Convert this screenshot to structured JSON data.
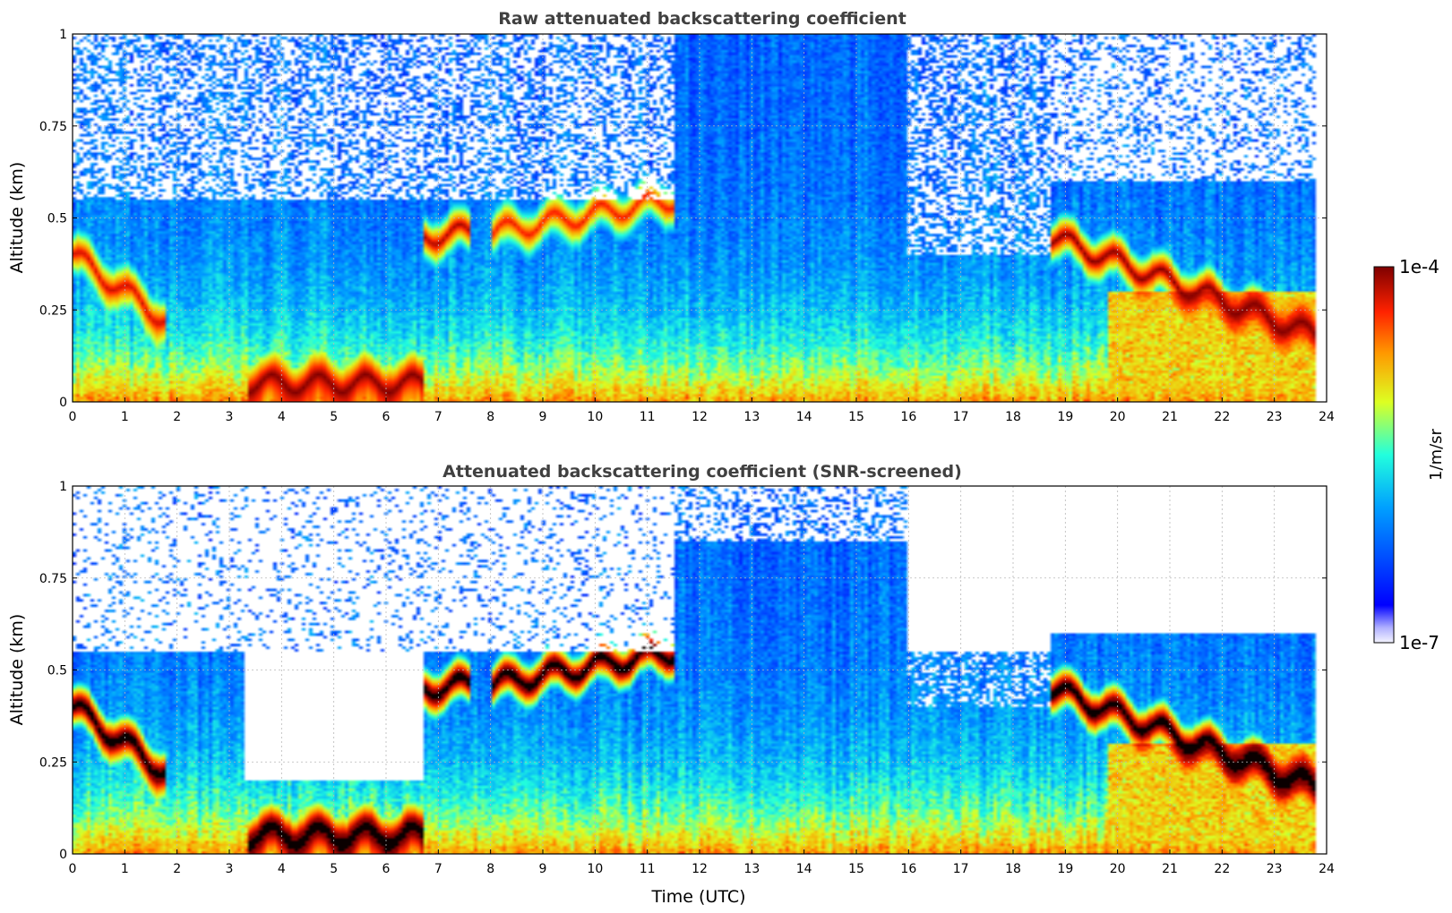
{
  "figure": {
    "xlabel": "Time (UTC)",
    "colorbar": {
      "label": "1/m/sr",
      "max_label": "1e-4",
      "min_label": "1e-7",
      "vmin_log10": -7,
      "vmax_log10": -4,
      "colormap": "jet"
    }
  },
  "chart_data": [
    {
      "type": "heatmap",
      "title": "Raw attenuated backscattering coefficient",
      "xlabel": "",
      "ylabel": "Altitude (km)",
      "xlim": [
        0,
        24
      ],
      "ylim": [
        0,
        1
      ],
      "xticks": [
        "0",
        "1",
        "2",
        "3",
        "4",
        "5",
        "6",
        "7",
        "8",
        "9",
        "10",
        "11",
        "12",
        "13",
        "14",
        "15",
        "16",
        "17",
        "18",
        "19",
        "20",
        "21",
        "22",
        "23",
        "24"
      ],
      "yticks": [
        "0",
        "0.25",
        "0.5",
        "0.75",
        "1"
      ],
      "grid": true,
      "data_end_hour": 23.8,
      "cloud_layers": [
        {
          "t0": 0.0,
          "t1": 1.8,
          "h_start": 0.4,
          "h_end": 0.22,
          "log10": -4.2
        },
        {
          "t0": 3.35,
          "t1": 6.7,
          "h_start": 0.05,
          "h_end": 0.05,
          "log10": -4.0
        },
        {
          "t0": 6.7,
          "t1": 7.6,
          "h_start": 0.45,
          "h_end": 0.46,
          "log10": -4.1
        },
        {
          "t0": 8.0,
          "t1": 11.5,
          "h_start": 0.46,
          "h_end": 0.55,
          "log10": -4.3
        },
        {
          "t0": 18.7,
          "t1": 23.8,
          "h_start": 0.45,
          "h_end": 0.18,
          "log10": -4.0
        }
      ],
      "screened": false
    },
    {
      "type": "heatmap",
      "title": "Attenuated backscattering coefficient (SNR-screened)",
      "xlabel": "Time (UTC)",
      "ylabel": "Altitude (km)",
      "xlim": [
        0,
        24
      ],
      "ylim": [
        0,
        1
      ],
      "xticks": [
        "0",
        "1",
        "2",
        "3",
        "4",
        "5",
        "6",
        "7",
        "8",
        "9",
        "10",
        "11",
        "12",
        "13",
        "14",
        "15",
        "16",
        "17",
        "18",
        "19",
        "20",
        "21",
        "22",
        "23",
        "24"
      ],
      "yticks": [
        "0",
        "0.25",
        "0.5",
        "0.75",
        "1"
      ],
      "grid": true,
      "data_end_hour": 23.8,
      "cloud_layers": [
        {
          "t0": 0.0,
          "t1": 1.8,
          "h_start": 0.4,
          "h_end": 0.22,
          "log10": -3.5
        },
        {
          "t0": 3.35,
          "t1": 6.7,
          "h_start": 0.05,
          "h_end": 0.05,
          "log10": -3.5
        },
        {
          "t0": 6.7,
          "t1": 7.6,
          "h_start": 0.45,
          "h_end": 0.46,
          "log10": -3.5
        },
        {
          "t0": 8.0,
          "t1": 11.5,
          "h_start": 0.46,
          "h_end": 0.55,
          "log10": -3.5
        },
        {
          "t0": 18.7,
          "t1": 23.8,
          "h_start": 0.45,
          "h_end": 0.18,
          "log10": -3.5
        }
      ],
      "screened": true
    }
  ]
}
